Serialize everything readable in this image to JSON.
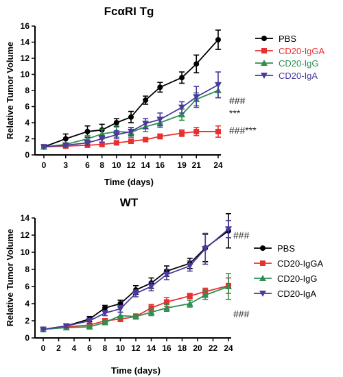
{
  "chart_data": [
    {
      "type": "line",
      "title": "FcαRI Tg",
      "xlabel": "Time (days)",
      "ylabel": "Relative Tumor Volume",
      "x": [
        0,
        3,
        6,
        8,
        10,
        12,
        14,
        16,
        19,
        21,
        24
      ],
      "xticks": [
        "0",
        "3",
        "6",
        "8",
        "10",
        "12",
        "14",
        "16",
        "19",
        "21",
        "24"
      ],
      "ylim": [
        0,
        16
      ],
      "yticks": [
        "0",
        "2",
        "4",
        "6",
        "8",
        "10",
        "12",
        "14",
        "16"
      ],
      "grid": false,
      "legend_position": "top-right",
      "series": [
        {
          "name": "PBS",
          "color": "#000000",
          "marker": "circle",
          "values": [
            1.0,
            2.0,
            2.9,
            3.1,
            4.0,
            4.7,
            6.8,
            8.4,
            9.6,
            11.3,
            14.3
          ],
          "errors": [
            0.1,
            0.6,
            0.7,
            0.7,
            0.5,
            0.7,
            0.5,
            0.6,
            0.7,
            1.1,
            1.2
          ]
        },
        {
          "name": "CD20-IgGA",
          "color": "#e8302f",
          "marker": "square",
          "values": [
            1.0,
            1.1,
            1.2,
            1.3,
            1.5,
            1.7,
            1.9,
            2.3,
            2.7,
            2.9,
            2.9
          ],
          "errors": [
            0.1,
            0.2,
            0.2,
            0.2,
            0.2,
            0.2,
            0.2,
            0.3,
            0.4,
            0.5,
            0.7
          ]
        },
        {
          "name": "CD20-IgG",
          "color": "#2d8f50",
          "marker": "triangle-up",
          "values": [
            1.0,
            1.3,
            2.0,
            2.6,
            2.9,
            2.8,
            3.5,
            4.0,
            5.0,
            6.9,
            8.0
          ],
          "errors": [
            0.1,
            0.2,
            0.4,
            0.6,
            0.7,
            0.6,
            0.6,
            0.6,
            0.7,
            0.8,
            0.9
          ]
        },
        {
          "name": "CD20-IgA",
          "color": "#4a3a9e",
          "marker": "triangle-down",
          "values": [
            1.0,
            1.2,
            1.5,
            2.0,
            2.5,
            2.9,
            3.9,
            4.4,
            5.9,
            7.2,
            8.7
          ],
          "errors": [
            0.1,
            0.2,
            0.3,
            0.4,
            0.5,
            0.5,
            0.6,
            0.8,
            0.7,
            1.3,
            1.6
          ]
        }
      ],
      "annotations": [
        "###",
        "***",
        "###***"
      ]
    },
    {
      "type": "line",
      "title": "WT",
      "xlabel": "Time (days)",
      "ylabel": "Relative Tumor Volume",
      "x": [
        0,
        3,
        6,
        8,
        10,
        12,
        14,
        16,
        19,
        21,
        24
      ],
      "xticks": [
        "0",
        "2",
        "4",
        "6",
        "8",
        "10",
        "12",
        "14",
        "16",
        "18",
        "20",
        "22",
        "24"
      ],
      "ylim": [
        0,
        14
      ],
      "yticks": [
        "0",
        "2",
        "4",
        "6",
        "8",
        "10",
        "12",
        "14"
      ],
      "grid": false,
      "legend_position": "right",
      "series": [
        {
          "name": "PBS",
          "color": "#000000",
          "marker": "circle",
          "values": [
            1.0,
            1.4,
            2.2,
            3.5,
            4.0,
            5.6,
            6.4,
            7.8,
            8.7,
            10.5,
            12.5
          ],
          "errors": [
            0.1,
            0.2,
            0.3,
            0.3,
            0.4,
            0.5,
            0.6,
            0.6,
            0.6,
            1.6,
            2.0
          ]
        },
        {
          "name": "CD20-IgGA",
          "color": "#e8302f",
          "marker": "square",
          "values": [
            1.0,
            1.3,
            1.5,
            2.0,
            2.2,
            2.5,
            3.5,
            4.2,
            4.9,
            5.4,
            6.1
          ],
          "errors": [
            0.1,
            0.2,
            0.2,
            0.2,
            0.3,
            0.3,
            0.4,
            0.5,
            0.3,
            0.4,
            0.9
          ]
        },
        {
          "name": "CD20-IgG",
          "color": "#2d8f50",
          "marker": "triangle-up",
          "values": [
            1.0,
            1.2,
            1.3,
            1.8,
            2.6,
            2.5,
            3.0,
            3.5,
            4.0,
            5.0,
            6.0
          ],
          "errors": [
            0.1,
            0.1,
            0.2,
            0.2,
            0.4,
            0.2,
            0.4,
            0.4,
            0.4,
            0.5,
            1.5
          ]
        },
        {
          "name": "CD20-IgA",
          "color": "#4a3a9e",
          "marker": "triangle-down",
          "values": [
            1.0,
            1.4,
            2.0,
            2.9,
            3.4,
            5.2,
            6.0,
            7.4,
            8.4,
            10.4,
            12.7
          ],
          "errors": [
            0.1,
            0.2,
            0.3,
            0.3,
            0.4,
            0.4,
            0.5,
            0.6,
            0.6,
            1.8,
            1.0
          ]
        }
      ],
      "annotations": [
        "###",
        "###"
      ]
    }
  ]
}
